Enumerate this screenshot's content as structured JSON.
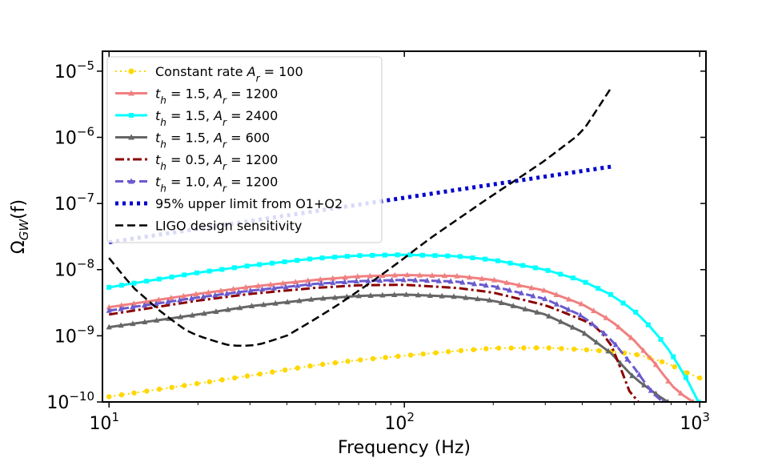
{
  "chart_data": {
    "type": "line",
    "xscale": "log",
    "yscale": "log",
    "xlim": [
      9.5,
      1050
    ],
    "ylim": [
      1e-10,
      2e-05
    ],
    "xlabel": "Frequency (Hz)",
    "ylabel": "Ω_GW(f)",
    "x_ticks": [
      {
        "value": 10,
        "base": "10",
        "exp": "1"
      },
      {
        "value": 100,
        "base": "10",
        "exp": "2"
      },
      {
        "value": 1000,
        "base": "10",
        "exp": "3"
      }
    ],
    "y_ticks": [
      {
        "value": 1e-10,
        "base": "10",
        "exp": "−10"
      },
      {
        "value": 1e-09,
        "base": "10",
        "exp": "−9"
      },
      {
        "value": 1e-08,
        "base": "10",
        "exp": "−8"
      },
      {
        "value": 1e-07,
        "base": "10",
        "exp": "−7"
      },
      {
        "value": 1e-06,
        "base": "10",
        "exp": "−6"
      },
      {
        "value": 1e-05,
        "base": "10",
        "exp": "−5"
      }
    ],
    "legend_position": "top-left",
    "series": [
      {
        "name": "Constant rate A_r = 100",
        "legend_parts": [
          {
            "t": "Constant rate "
          },
          {
            "t": "A",
            "i": true
          },
          {
            "t": "r",
            "sub": true
          },
          {
            "t": " = 100"
          }
        ],
        "color": "#FFD700",
        "style": "dotted",
        "marker": "circle",
        "width": 2,
        "x": [
          10,
          20,
          30,
          50,
          70,
          100,
          150,
          200,
          300,
          400,
          500,
          600,
          700,
          800,
          900,
          1000
        ],
        "y": [
          1.2e-10,
          1.9e-10,
          2.5e-10,
          3.6e-10,
          4.3e-10,
          5e-10,
          5.9e-10,
          6.5e-10,
          6.6e-10,
          6.2e-10,
          5.8e-10,
          5.3e-10,
          4.5e-10,
          3.6e-10,
          2.8e-10,
          2.3e-10
        ]
      },
      {
        "name": "t_h = 1.5, A_r = 1200",
        "legend_parts": [
          {
            "t": "t",
            "i": true
          },
          {
            "t": "h",
            "sub": true
          },
          {
            "t": " = 1.5, "
          },
          {
            "t": "A",
            "i": true
          },
          {
            "t": "r",
            "sub": true
          },
          {
            "t": " = 1200"
          }
        ],
        "color": "#F08080",
        "style": "solid",
        "marker": "triangle",
        "width": 3,
        "x": [
          10,
          20,
          30,
          50,
          70,
          100,
          150,
          200,
          300,
          400,
          500,
          600,
          700,
          800,
          900,
          950
        ],
        "y": [
          2.7e-09,
          4.3e-09,
          5.5e-09,
          7e-09,
          7.9e-09,
          8.3e-09,
          8e-09,
          7e-09,
          4.8e-09,
          3e-09,
          1.7e-09,
          8.5e-10,
          4e-10,
          1.8e-10,
          1.15e-10,
          1e-10
        ]
      },
      {
        "name": "t_h = 1.5, A_r = 2400",
        "legend_parts": [
          {
            "t": "t",
            "i": true
          },
          {
            "t": "h",
            "sub": true
          },
          {
            "t": " = 1.5, "
          },
          {
            "t": "A",
            "i": true
          },
          {
            "t": "r",
            "sub": true
          },
          {
            "t": " = 2400"
          }
        ],
        "color": "#00FFFF",
        "style": "solid",
        "marker": "square",
        "width": 3,
        "x": [
          10,
          20,
          30,
          50,
          70,
          100,
          150,
          200,
          300,
          400,
          500,
          600,
          700,
          800,
          900,
          990
        ],
        "y": [
          5.4e-09,
          9e-09,
          1.15e-08,
          1.48e-08,
          1.63e-08,
          1.68e-08,
          1.6e-08,
          1.4e-08,
          1e-08,
          6.8e-09,
          4.2e-09,
          2.4e-09,
          1.2e-09,
          5.5e-10,
          2.3e-10,
          1e-10
        ]
      },
      {
        "name": "t_h = 1.5, A_r = 600",
        "legend_parts": [
          {
            "t": "t",
            "i": true
          },
          {
            "t": "h",
            "sub": true
          },
          {
            "t": " = 1.5, "
          },
          {
            "t": "A",
            "i": true
          },
          {
            "t": "r",
            "sub": true
          },
          {
            "t": " = 600"
          }
        ],
        "color": "#666666",
        "style": "solid",
        "marker": "triangle",
        "width": 3,
        "x": [
          10,
          20,
          30,
          50,
          70,
          100,
          150,
          200,
          300,
          400,
          500,
          600,
          700,
          750,
          780
        ],
        "y": [
          1.35e-09,
          2.1e-09,
          2.8e-09,
          3.6e-09,
          4e-09,
          4.2e-09,
          3.9e-09,
          3.4e-09,
          2.1e-09,
          1.15e-09,
          5.5e-10,
          2.3e-10,
          1.4e-10,
          1.1e-10,
          1e-10
        ]
      },
      {
        "name": "t_h = 0.5, A_r = 1200",
        "legend_parts": [
          {
            "t": "t",
            "i": true
          },
          {
            "t": "h",
            "sub": true
          },
          {
            "t": " = 0.5, "
          },
          {
            "t": "A",
            "i": true
          },
          {
            "t": "r",
            "sub": true
          },
          {
            "t": " = 1200"
          }
        ],
        "color": "#8B0000",
        "style": "dashdot",
        "marker": "none",
        "width": 3,
        "x": [
          10,
          20,
          30,
          50,
          70,
          100,
          150,
          200,
          300,
          400,
          450,
          500,
          530,
          560,
          580,
          600,
          620
        ],
        "y": [
          2.1e-09,
          3.4e-09,
          4.3e-09,
          5.3e-09,
          5.8e-09,
          5.9e-09,
          5.3e-09,
          4.5e-09,
          2.9e-09,
          1.75e-09,
          1.35e-09,
          7.5e-10,
          4e-10,
          2.1e-10,
          1.4e-10,
          1.1e-10,
          1e-10
        ]
      },
      {
        "name": "t_h = 1.0, A_r = 1200",
        "legend_parts": [
          {
            "t": "t",
            "i": true
          },
          {
            "t": "h",
            "sub": true
          },
          {
            "t": " = 1.0, "
          },
          {
            "t": "A",
            "i": true
          },
          {
            "t": "r",
            "sub": true
          },
          {
            "t": " = 1200"
          }
        ],
        "color": "#6A5ACD",
        "style": "dashed",
        "marker": "triangle",
        "width": 3,
        "x": [
          10,
          20,
          30,
          50,
          70,
          100,
          150,
          200,
          300,
          400,
          500,
          600,
          650,
          700,
          750
        ],
        "y": [
          2.4e-09,
          3.8e-09,
          4.8e-09,
          6.1e-09,
          6.7e-09,
          7e-09,
          6.6e-09,
          5.6e-09,
          3.6e-09,
          2e-09,
          9e-10,
          3.3e-10,
          2e-10,
          1.3e-10,
          1e-10
        ]
      },
      {
        "name": "95% upper limit from O1+O2",
        "legend_parts": [
          {
            "t": "95% upper limit from O1+O2"
          }
        ],
        "color": "#0000CD",
        "style": "dotted-thick",
        "marker": "none",
        "width": 5,
        "x": [
          10,
          500
        ],
        "y": [
          2.6e-08,
          3.6e-07
        ]
      },
      {
        "name": "LIGO design sensitivity",
        "legend_parts": [
          {
            "t": "LIGO design sensitivity"
          }
        ],
        "color": "#000000",
        "style": "dashed",
        "marker": "none",
        "width": 2.5,
        "x": [
          10,
          12,
          15,
          18,
          20,
          25,
          28,
          32,
          40,
          50,
          60,
          70,
          80,
          100,
          120,
          150,
          200,
          250,
          300,
          400,
          500
        ],
        "y": [
          1.5e-08,
          5.5e-09,
          2.3e-09,
          1.25e-09,
          1e-09,
          7.3e-10,
          7e-10,
          7.3e-10,
          1e-09,
          1.8e-09,
          3e-09,
          4.8e-09,
          7.2e-09,
          1.5e-08,
          2.8e-08,
          5.6e-08,
          1.35e-07,
          2.6e-07,
          4.5e-07,
          1.2e-06,
          5.5e-06
        ]
      }
    ]
  }
}
